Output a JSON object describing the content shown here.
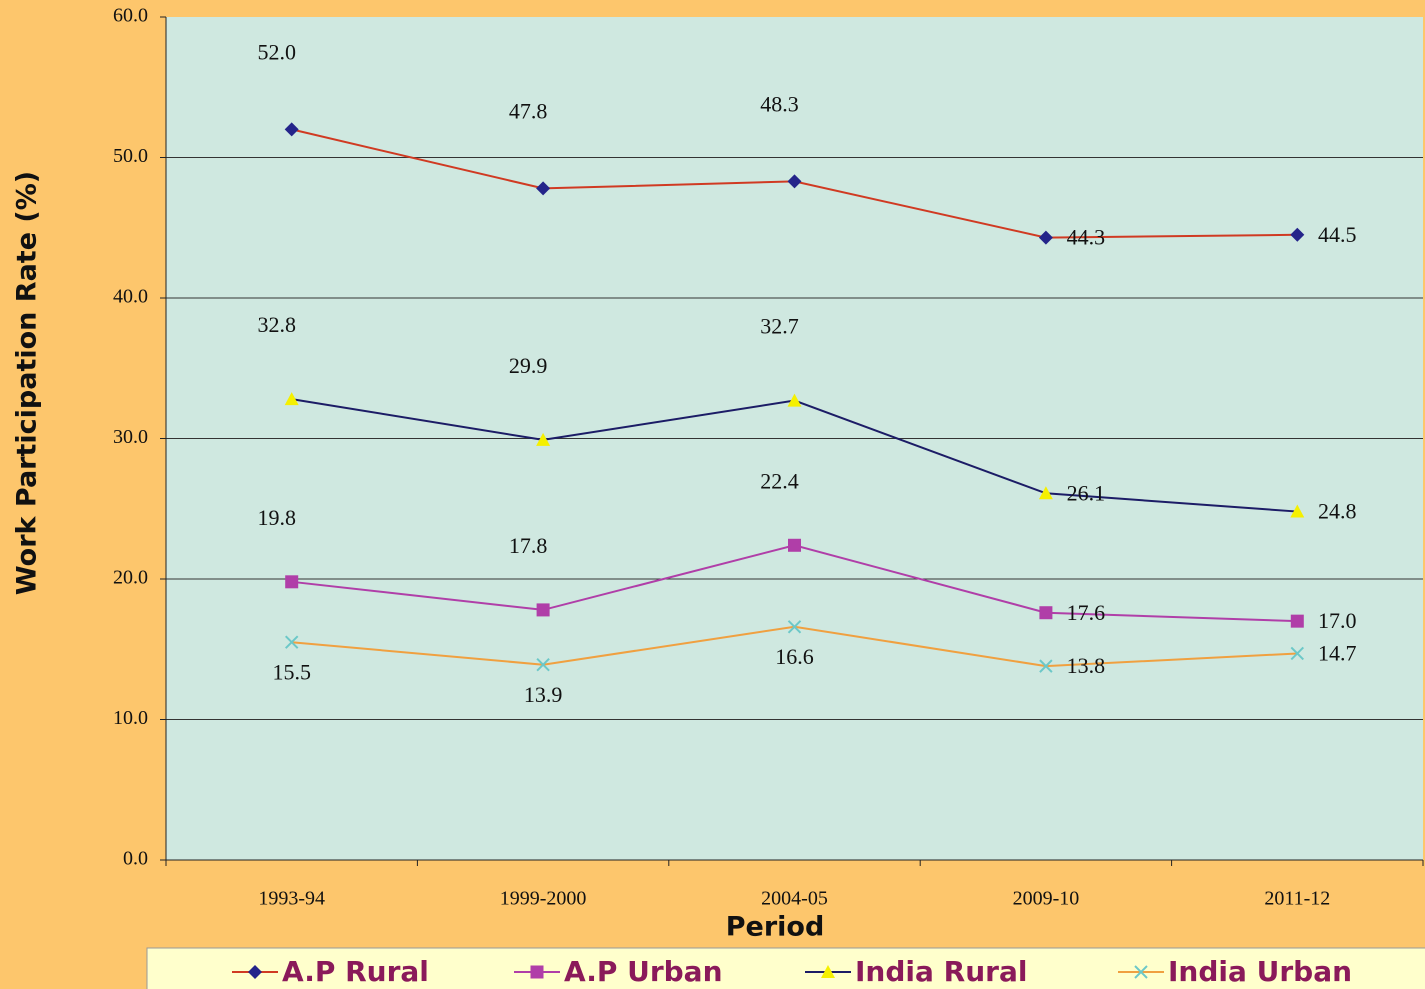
{
  "chart_data": {
    "type": "line",
    "x_label": "Period",
    "y_label": "Work Participation Rate (%)",
    "categories": [
      "1993-94",
      "1999-2000",
      "2004-05",
      "2009-10",
      "2011-12"
    ],
    "series": [
      {
        "name": "A.P Rural",
        "color": "#d03a22",
        "marker_color": "#24248a",
        "marker": "diamond",
        "values": [
          52.0,
          47.8,
          48.3,
          44.3,
          44.5
        ],
        "value_labels": [
          "52.0",
          "47.8",
          "48.3",
          "44.3",
          "44.5"
        ]
      },
      {
        "name": "A.P Urban",
        "color": "#b03ea8",
        "marker_color": "#b03ea8",
        "marker": "square",
        "values": [
          19.8,
          17.8,
          22.4,
          17.6,
          17.0
        ],
        "value_labels": [
          "19.8",
          "17.8",
          "22.4",
          "17.6",
          "17.0"
        ]
      },
      {
        "name": "India Rural",
        "color": "#1c1c66",
        "marker_color": "#f5f000",
        "marker": "triangle",
        "values": [
          32.8,
          29.9,
          32.7,
          26.1,
          24.8
        ],
        "value_labels": [
          "32.8",
          "29.9",
          "32.7",
          "26.1",
          "24.8"
        ]
      },
      {
        "name": "India Urban",
        "color": "#f0a040",
        "marker_color": "#6cc8c8",
        "marker": "x",
        "values": [
          15.5,
          13.9,
          16.6,
          13.8,
          14.7
        ],
        "value_labels": [
          "15.5",
          "13.9",
          "16.6",
          "13.8",
          "14.7"
        ]
      }
    ],
    "ylim": [
      0,
      60
    ],
    "yticks": [
      {
        "value": 0,
        "label": "0.0"
      },
      {
        "value": 10,
        "label": "10.0"
      },
      {
        "value": 20,
        "label": "20.0"
      },
      {
        "value": 30,
        "label": "30.0"
      },
      {
        "value": 40,
        "label": "40.0"
      },
      {
        "value": 50,
        "label": "50.0"
      },
      {
        "value": 60,
        "label": "60.0"
      }
    ],
    "grid": true,
    "legend": "bottom"
  }
}
